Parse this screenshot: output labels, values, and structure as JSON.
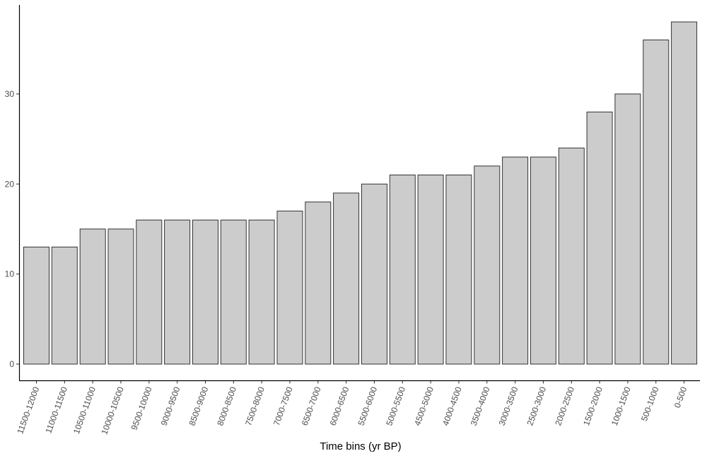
{
  "chart_data": {
    "type": "bar",
    "title": "",
    "xlabel": "Time bins (yr BP)",
    "ylabel": "",
    "categories": [
      "11500-12000",
      "11000-11500",
      "10500-11000",
      "10000-10500",
      "9500-10000",
      "9000-9500",
      "8500-9000",
      "8000-8500",
      "7500-8000",
      "7000-7500",
      "6500-7000",
      "6000-6500",
      "5500-6000",
      "5000-5500",
      "4500-5000",
      "4000-4500",
      "3500-4000",
      "3000-3500",
      "2500-3000",
      "2000-2500",
      "1500-2000",
      "1000-1500",
      "500-1000",
      "0-500"
    ],
    "values": [
      13,
      13,
      15,
      15,
      16,
      16,
      16,
      16,
      16,
      17,
      18,
      19,
      20,
      21,
      21,
      21,
      22,
      23,
      23,
      24,
      28,
      30,
      36,
      38
    ],
    "ylim": [
      0,
      38
    ],
    "yticks": [
      "0",
      "10",
      "20",
      "30"
    ],
    "grid": false,
    "legend": "none",
    "colors": {
      "bar_fill": "#cccccc",
      "bar_stroke": "#333333",
      "axis": "#000000"
    }
  }
}
